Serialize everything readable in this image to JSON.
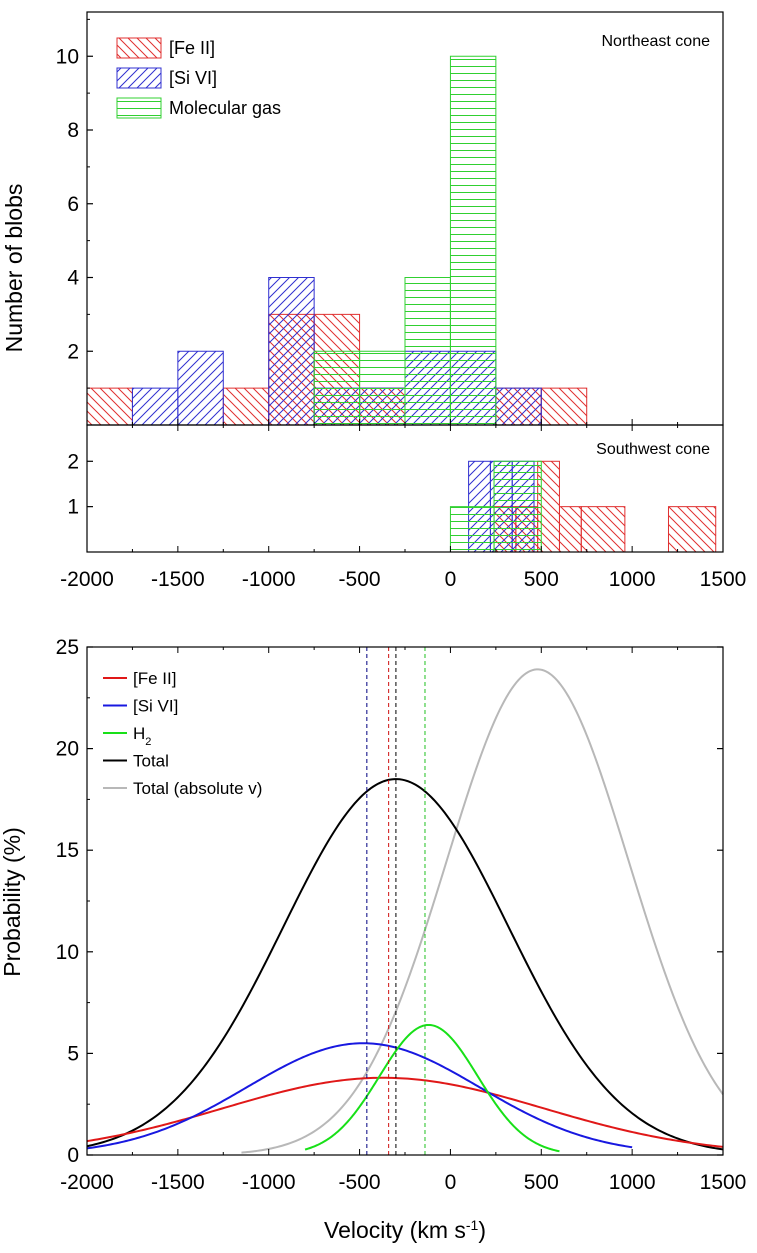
{
  "chart_data": [
    {
      "type": "bar",
      "panel": "northeast",
      "annotation": "Northeast cone",
      "ylabel": "Number of blobs",
      "xlim": [
        -2000,
        1500
      ],
      "ylim": [
        0,
        11.2
      ],
      "yticks": [
        2,
        4,
        6,
        8,
        10
      ],
      "legend": [
        {
          "label": "[Fe II]",
          "color": "#e03030",
          "hatch": "diag"
        },
        {
          "label": "[Si VI]",
          "color": "#3030d0",
          "hatch": "rdiag"
        },
        {
          "label": "Molecular gas",
          "color": "#30d030",
          "hatch": "horiz"
        }
      ],
      "series": [
        {
          "name": "[Fe II]",
          "color": "#e03030",
          "hatch": "diag",
          "bins": [
            [
              -2000,
              -1750,
              1
            ],
            [
              -1250,
              -1000,
              1
            ],
            [
              -1000,
              -750,
              3
            ],
            [
              -750,
              -500,
              3
            ],
            [
              -500,
              -250,
              1
            ],
            [
              250,
              500,
              1
            ],
            [
              500,
              750,
              1
            ]
          ]
        },
        {
          "name": "[Si VI]",
          "color": "#3030d0",
          "hatch": "rdiag",
          "bins": [
            [
              -1750,
              -1500,
              1
            ],
            [
              -1500,
              -1250,
              2
            ],
            [
              -1000,
              -750,
              4
            ],
            [
              -750,
              -500,
              1
            ],
            [
              -500,
              -250,
              1
            ],
            [
              -250,
              0,
              2
            ],
            [
              0,
              250,
              2
            ],
            [
              250,
              500,
              1
            ]
          ]
        },
        {
          "name": "Molecular gas",
          "color": "#30d030",
          "hatch": "horiz",
          "bins": [
            [
              -750,
              -500,
              2
            ],
            [
              -500,
              -250,
              2
            ],
            [
              -250,
              0,
              4
            ],
            [
              0,
              250,
              10
            ]
          ]
        }
      ]
    },
    {
      "type": "bar",
      "panel": "southwest",
      "annotation": "Southwest cone",
      "xlim": [
        -2000,
        1500
      ],
      "ylim": [
        0,
        2.8
      ],
      "yticks": [
        1,
        2
      ],
      "xticks": [
        -2000,
        -1500,
        -1000,
        -500,
        0,
        500,
        1000,
        1500
      ],
      "series": [
        {
          "name": "[Fe II]",
          "color": "#e03030",
          "hatch": "diag",
          "bins": [
            [
              240,
              360,
              1
            ],
            [
              360,
              480,
              1
            ],
            [
              480,
              600,
              2
            ],
            [
              600,
              720,
              1
            ],
            [
              720,
              960,
              1
            ],
            [
              1200,
              1460,
              1
            ]
          ]
        },
        {
          "name": "[Si VI]",
          "color": "#3030d0",
          "hatch": "rdiag",
          "bins": [
            [
              100,
              220,
              2
            ],
            [
              220,
              340,
              2
            ],
            [
              340,
              460,
              2
            ]
          ]
        },
        {
          "name": "Molecular gas",
          "color": "#30d030",
          "hatch": "horiz",
          "bins": [
            [
              0,
              240,
              1
            ],
            [
              240,
              500,
              2
            ]
          ]
        }
      ]
    },
    {
      "type": "line",
      "panel": "probability",
      "xlabel": "Velocity (km s-1)",
      "xlabel_main": "Velocity (km s",
      "xlabel_sup": "-1",
      "xlabel_end": ")",
      "ylabel": "Probability (%)",
      "xlim": [
        -2000,
        1500
      ],
      "ylim": [
        0,
        25
      ],
      "xticks": [
        -2000,
        -1500,
        -1000,
        -500,
        0,
        500,
        1000,
        1500
      ],
      "yticks": [
        0,
        5,
        10,
        15,
        20,
        25
      ],
      "legend": [
        {
          "label": "[Fe II]",
          "color": "#e01818"
        },
        {
          "label": "[Si VI]",
          "color": "#1818e0"
        },
        {
          "label": "H",
          "sub": "2",
          "color": "#18e018"
        },
        {
          "label": "Total",
          "color": "#000000"
        },
        {
          "label": "Total (absolute v)",
          "color": "#b8b8b8"
        }
      ],
      "series": [
        {
          "name": "Total (absolute v)",
          "color": "#b8b8b8",
          "peak": 23.9,
          "mu": 480,
          "sigma": 500,
          "xrange": [
            -1150,
            1500
          ]
        },
        {
          "name": "Total",
          "color": "#000000",
          "peak": 18.5,
          "mu": -300,
          "sigma": 620,
          "xrange": [
            -2000,
            1500
          ]
        },
        {
          "name": "[Fe II]",
          "color": "#e01818",
          "peak": 3.8,
          "mu": -370,
          "sigma": 880,
          "xrange": [
            -2000,
            1500
          ]
        },
        {
          "name": "[Si VI]",
          "color": "#1818e0",
          "peak": 5.5,
          "mu": -480,
          "sigma": 640,
          "xrange": [
            -2000,
            1000
          ]
        },
        {
          "name": "H2",
          "color": "#18e018",
          "peak": 6.4,
          "mu": -120,
          "sigma": 270,
          "xrange": [
            -800,
            600
          ]
        }
      ],
      "vlines": [
        {
          "x": -460,
          "color": "#000080"
        },
        {
          "x": -340,
          "color": "#d01010"
        },
        {
          "x": -300,
          "color": "#000000"
        },
        {
          "x": -140,
          "color": "#20c020"
        }
      ]
    }
  ]
}
